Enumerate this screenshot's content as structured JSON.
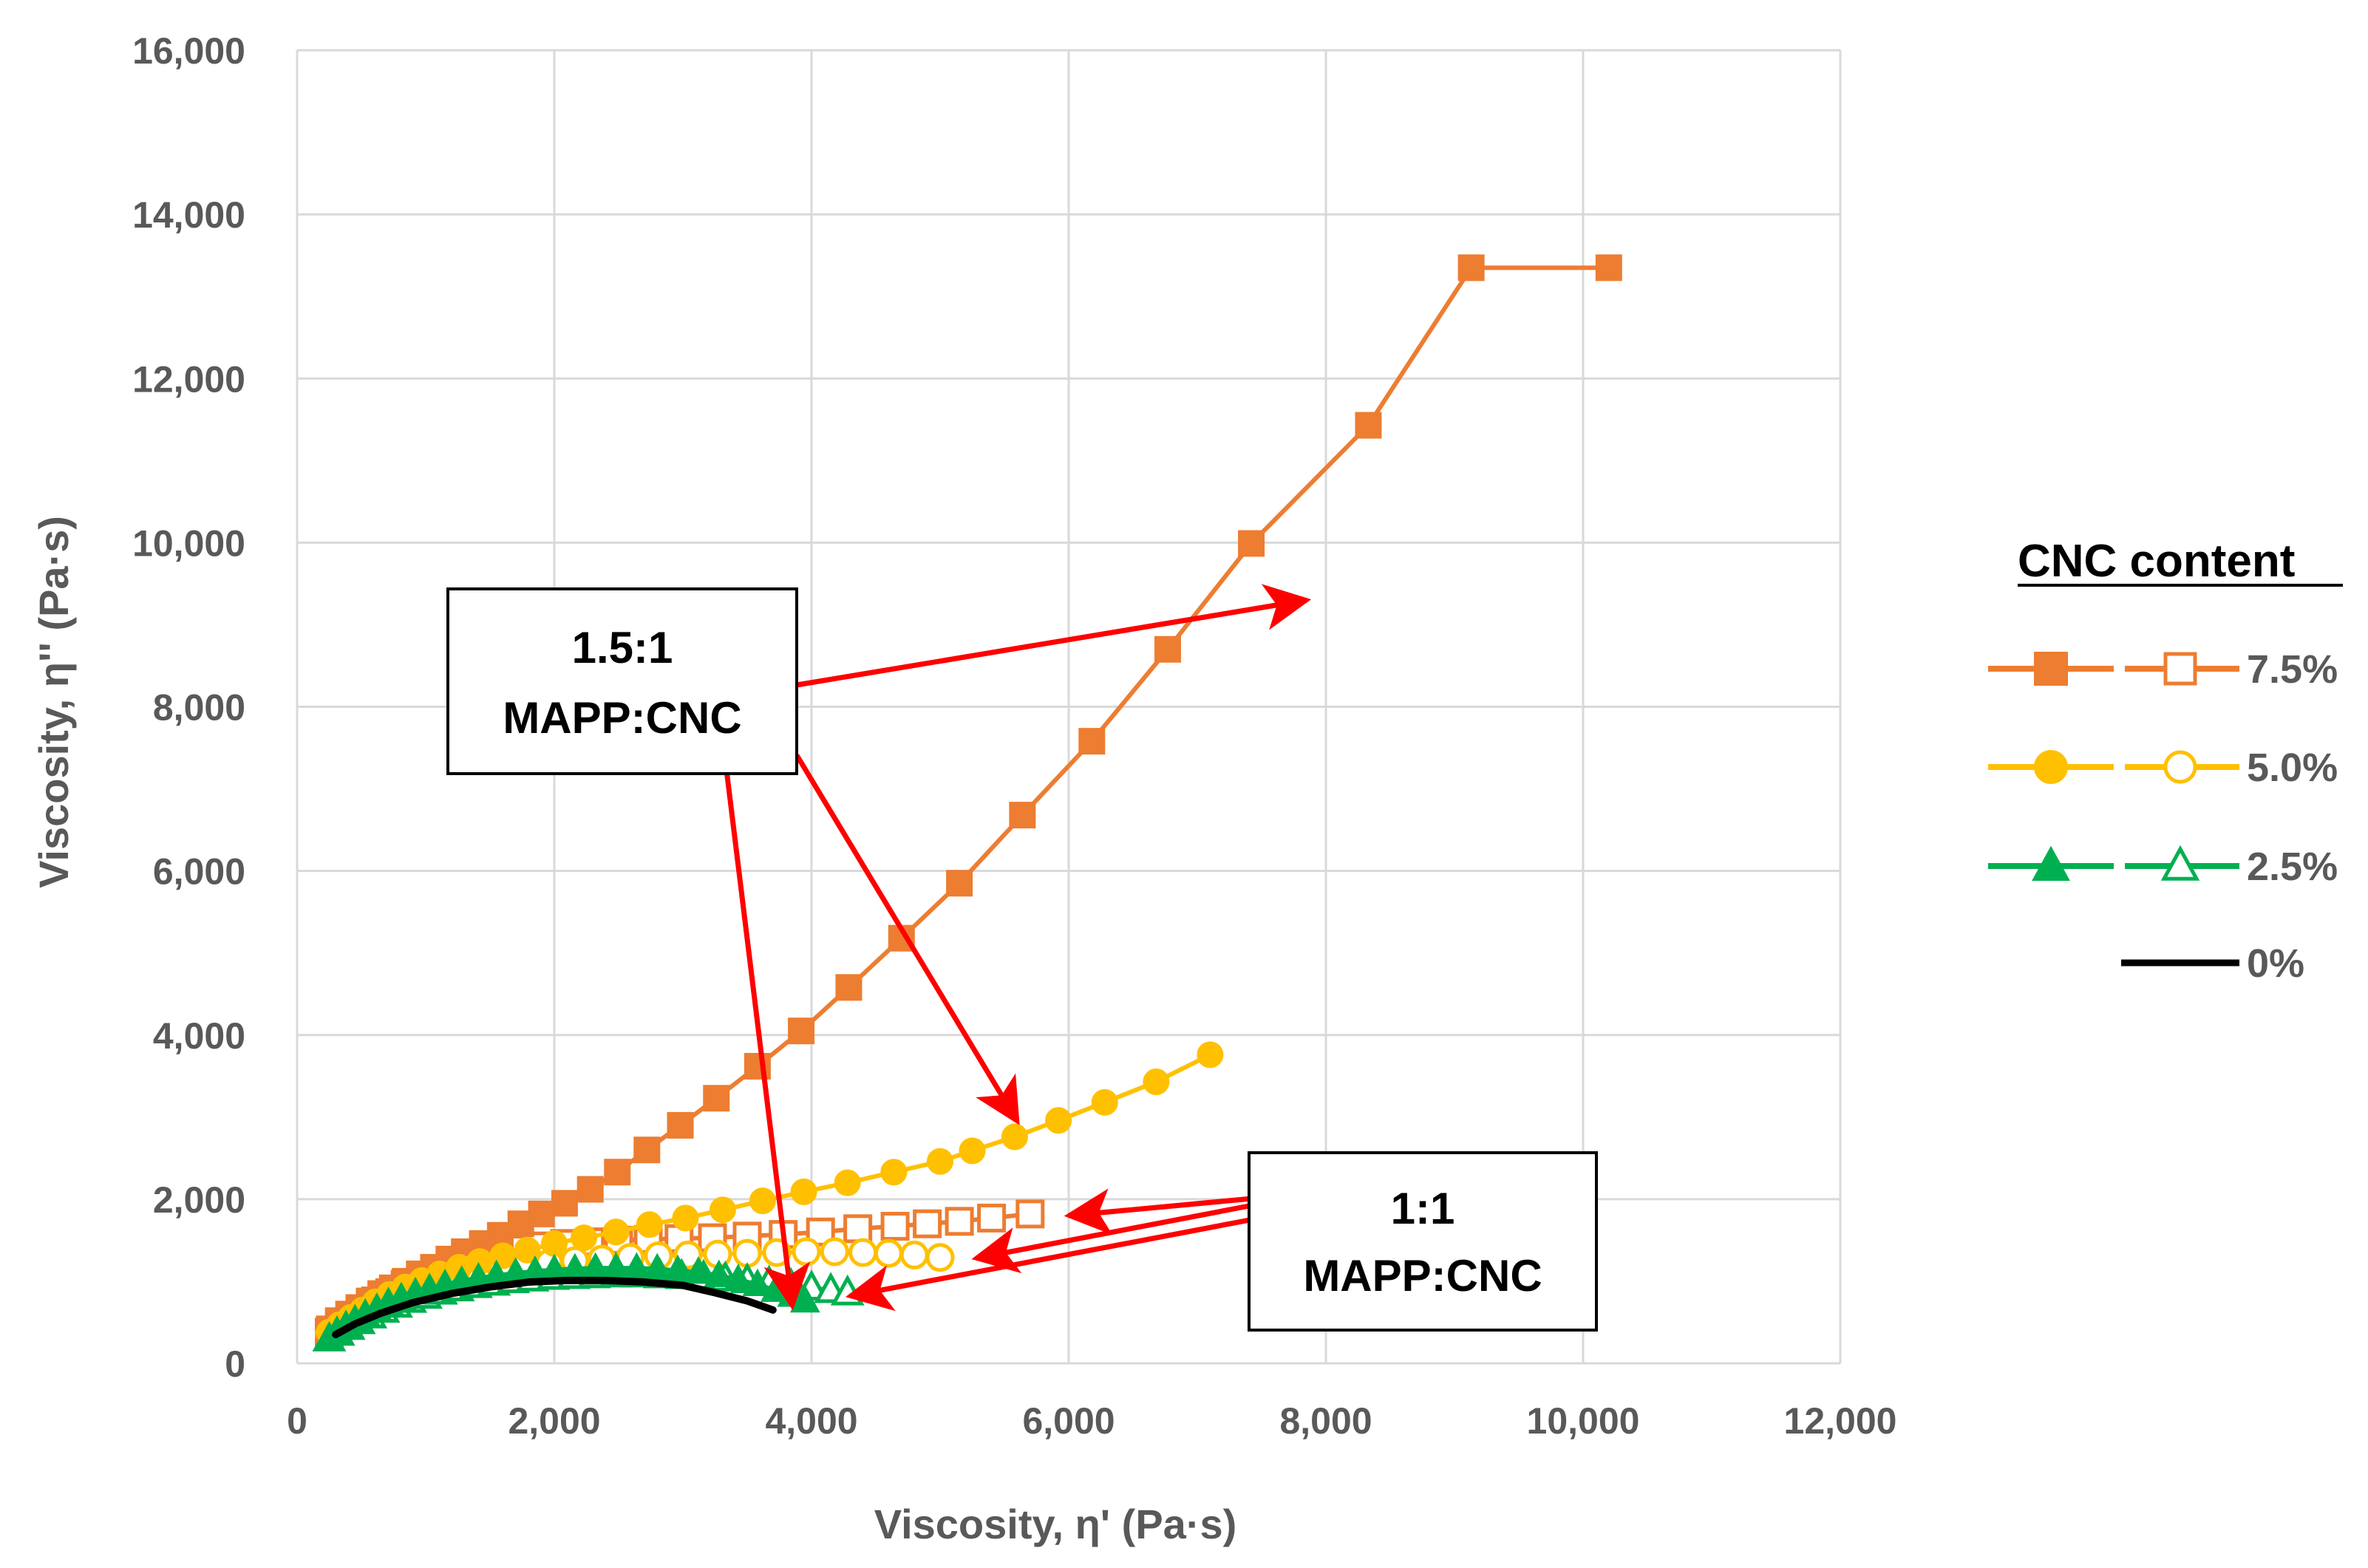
{
  "colors": {
    "orange": "#ED7D31",
    "yellow": "#FFC000",
    "green": "#00B050",
    "black": "#000000",
    "arrow": "#FF0000",
    "grid": "#D9D9D9",
    "tick_text": "#595959"
  },
  "chart_data": {
    "type": "scatter",
    "title": "",
    "xlabel": "Viscosity, η' (Pa·s)",
    "ylabel": "Viscosity, η'' (Pa·s)",
    "xlim": [
      0,
      12000
    ],
    "ylim": [
      0,
      16000
    ],
    "xticks": [
      "0",
      "2,000",
      "4,000",
      "6,000",
      "8,000",
      "10,000",
      "12,000"
    ],
    "yticks": [
      "0",
      "2,000",
      "4,000",
      "6,000",
      "8,000",
      "10,000",
      "12,000",
      "14,000",
      "16,000"
    ],
    "grid": true,
    "legend": {
      "title": "CNC content",
      "position": "right",
      "entries": [
        "7.5%",
        "5.0%",
        "2.5%",
        "0%"
      ]
    },
    "series": [
      {
        "name": "7.5% (1.5:1 MAPP:CNC)",
        "color": "orange",
        "marker": "square",
        "filled": true,
        "x": [
          250,
          320,
          400,
          480,
          560,
          650,
          740,
          840,
          950,
          1060,
          1180,
          1300,
          1440,
          1580,
          1740,
          1900,
          2080,
          2280,
          2490,
          2720,
          2980,
          3260,
          3580,
          3920,
          4290,
          4700,
          5150,
          5640,
          6180,
          6770,
          7420,
          8330,
          9130,
          10200
        ],
        "y": [
          420,
          520,
          600,
          680,
          760,
          850,
          920,
          1000,
          1090,
          1170,
          1270,
          1360,
          1460,
          1560,
          1700,
          1820,
          1950,
          2120,
          2330,
          2600,
          2900,
          3230,
          3620,
          4050,
          4580,
          5180,
          5850,
          6680,
          7580,
          8700,
          9990,
          11430,
          13350,
          13350
        ]
      },
      {
        "name": "7.5% (1:1 MAPP:CNC)",
        "color": "orange",
        "marker": "square",
        "filled": false,
        "x": [
          250,
          330,
          420,
          510,
          610,
          720,
          840,
          960,
          1090,
          1230,
          1380,
          1540,
          1710,
          1890,
          2080,
          2280,
          2500,
          2730,
          2970,
          3230,
          3500,
          3780,
          4070,
          4360,
          4650,
          4900,
          5150,
          5400,
          5700
        ],
        "y": [
          380,
          470,
          560,
          660,
          760,
          860,
          960,
          1040,
          1120,
          1200,
          1270,
          1340,
          1390,
          1430,
          1460,
          1480,
          1500,
          1510,
          1520,
          1530,
          1550,
          1570,
          1600,
          1640,
          1670,
          1700,
          1730,
          1770,
          1820
        ]
      },
      {
        "name": "5.0% (1.5:1 MAPP:CNC)",
        "color": "yellow",
        "marker": "circle",
        "filled": true,
        "x": [
          250,
          330,
          420,
          510,
          610,
          720,
          840,
          970,
          1110,
          1260,
          1420,
          1600,
          1790,
          2000,
          2230,
          2480,
          2740,
          3020,
          3310,
          3620,
          3940,
          4280,
          4640,
          5000,
          5250,
          5580,
          5920,
          6280,
          6680,
          7100
        ],
        "y": [
          380,
          470,
          560,
          650,
          750,
          840,
          930,
          1010,
          1090,
          1170,
          1240,
          1310,
          1380,
          1460,
          1530,
          1600,
          1690,
          1770,
          1870,
          1980,
          2090,
          2200,
          2330,
          2460,
          2590,
          2760,
          2960,
          3180,
          3430,
          3760
        ]
      },
      {
        "name": "5.0% (1:1 MAPP:CNC)",
        "color": "yellow",
        "marker": "circle",
        "filled": false,
        "x": [
          250,
          330,
          420,
          510,
          610,
          720,
          840,
          970,
          1110,
          1260,
          1420,
          1590,
          1770,
          1960,
          2160,
          2370,
          2590,
          2810,
          3040,
          3270,
          3500,
          3730,
          3960,
          4180,
          4400,
          4600,
          4800,
          5000
        ],
        "y": [
          360,
          450,
          530,
          610,
          700,
          780,
          850,
          920,
          990,
          1050,
          1100,
          1150,
          1190,
          1220,
          1250,
          1270,
          1290,
          1310,
          1320,
          1330,
          1340,
          1350,
          1360,
          1360,
          1350,
          1340,
          1320,
          1290
        ]
      },
      {
        "name": "2.5% (1.5:1 MAPP:CNC)",
        "color": "green",
        "marker": "triangle",
        "filled": true,
        "x": [
          250,
          310,
          380,
          450,
          530,
          620,
          710,
          810,
          920,
          1030,
          1150,
          1280,
          1410,
          1550,
          1700,
          1850,
          2000,
          2160,
          2320,
          2480,
          2640,
          2800,
          2960,
          3120,
          3280,
          3430,
          3580,
          3720,
          3850,
          3950
        ],
        "y": [
          320,
          390,
          460,
          530,
          600,
          670,
          740,
          800,
          860,
          910,
          960,
          1000,
          1040,
          1070,
          1100,
          1120,
          1140,
          1150,
          1160,
          1160,
          1160,
          1150,
          1130,
          1110,
          1070,
          1020,
          960,
          890,
          830,
          760
        ]
      },
      {
        "name": "2.5% (1:1 MAPP:CNC)",
        "color": "green",
        "marker": "triangle",
        "filled": false,
        "x": [
          250,
          320,
          400,
          480,
          570,
          670,
          770,
          880,
          1000,
          1120,
          1250,
          1390,
          1530,
          1680,
          1830,
          1990,
          2150,
          2310,
          2480,
          2650,
          2820,
          2990,
          3160,
          3330,
          3500,
          3670,
          3840,
          4000,
          4150,
          4280
        ],
        "y": [
          300,
          370,
          440,
          510,
          580,
          650,
          710,
          770,
          820,
          870,
          910,
          950,
          980,
          1010,
          1030,
          1050,
          1060,
          1070,
          1080,
          1080,
          1070,
          1060,
          1050,
          1030,
          1010,
          980,
          950,
          920,
          890,
          860
        ]
      },
      {
        "name": "0%",
        "color": "black",
        "marker": "none",
        "filled": true,
        "x": [
          300,
          450,
          650,
          900,
          1200,
          1500,
          1800,
          2100,
          2400,
          2700,
          3000,
          3250,
          3500,
          3700
        ],
        "y": [
          350,
          480,
          610,
          740,
          850,
          930,
          990,
          1010,
          1010,
          990,
          950,
          860,
          760,
          650
        ]
      }
    ],
    "annotations": [
      {
        "id": "ann-1-5-to-1",
        "line1": "1.5:1",
        "line2": "MAPP:CNC",
        "arrow_targets": [
          [
            7850,
            9300
          ],
          [
            5600,
            2950
          ],
          [
            3850,
            700
          ]
        ]
      },
      {
        "id": "ann-1-to-1",
        "line1": "1:1",
        "line2": "MAPP:CNC",
        "arrow_targets": [
          [
            6000,
            1800
          ],
          [
            5280,
            1280
          ],
          [
            4300,
            820
          ]
        ]
      }
    ]
  }
}
